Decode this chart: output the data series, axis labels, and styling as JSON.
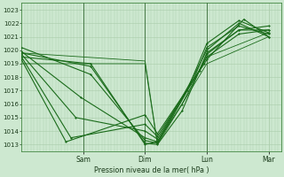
{
  "xlabel": "Pression niveau de la mer( hPa )",
  "ylim": [
    1012.5,
    1023.5
  ],
  "yticks": [
    1013,
    1014,
    1015,
    1016,
    1017,
    1018,
    1019,
    1020,
    1021,
    1022,
    1023
  ],
  "day_labels": [
    "Sam",
    "Dim",
    "Lun",
    "Mar"
  ],
  "day_positions": [
    0.25,
    0.5,
    0.75,
    1.0
  ],
  "xlim": [
    0.0,
    1.05
  ],
  "bg_color": "#cde8d0",
  "grid_color": "#aaccaa",
  "line_color": "#1a6b1a",
  "series": [
    {
      "x": [
        0.0,
        0.28,
        0.5,
        0.55,
        0.65,
        0.75,
        0.88,
        1.0
      ],
      "y": [
        1019.5,
        1019.0,
        1013.0,
        1013.2,
        1016.0,
        1019.5,
        1021.2,
        1021.5
      ]
    },
    {
      "x": [
        0.0,
        0.28,
        0.5,
        0.55,
        0.65,
        0.75,
        0.88,
        1.0
      ],
      "y": [
        1019.8,
        1018.8,
        1013.1,
        1013.0,
        1015.5,
        1019.8,
        1021.5,
        1021.8
      ]
    },
    {
      "x": [
        0.0,
        0.28,
        0.5,
        0.55,
        0.67,
        0.75,
        0.88,
        1.0
      ],
      "y": [
        1020.2,
        1018.2,
        1013.3,
        1013.1,
        1017.0,
        1020.5,
        1022.2,
        1021.3
      ]
    },
    {
      "x": [
        0.0,
        0.24,
        0.5,
        0.55,
        0.68,
        0.75,
        0.88,
        1.0
      ],
      "y": [
        1019.9,
        1016.5,
        1013.5,
        1013.2,
        1017.5,
        1020.0,
        1022.0,
        1021.0
      ]
    },
    {
      "x": [
        0.0,
        0.22,
        0.5,
        0.55,
        0.7,
        0.75,
        0.88,
        1.0
      ],
      "y": [
        1019.7,
        1015.0,
        1014.0,
        1013.4,
        1018.0,
        1020.2,
        1021.8,
        1021.2
      ]
    },
    {
      "x": [
        0.0,
        0.2,
        0.5,
        0.55,
        0.72,
        0.75,
        0.88,
        1.0
      ],
      "y": [
        1019.5,
        1013.5,
        1014.5,
        1013.6,
        1018.5,
        1019.7,
        1021.5,
        1021.5
      ]
    },
    {
      "x": [
        0.0,
        0.18,
        0.5,
        0.55,
        0.74,
        0.75,
        0.9,
        1.0
      ],
      "y": [
        1019.3,
        1013.2,
        1015.2,
        1013.8,
        1019.0,
        1019.3,
        1022.3,
        1021.0
      ]
    },
    {
      "x": [
        0.0,
        0.5,
        0.55,
        0.75,
        1.0
      ],
      "y": [
        1019.0,
        1019.0,
        1013.0,
        1019.0,
        1021.0
      ]
    },
    {
      "x": [
        0.0,
        0.5,
        0.55,
        0.75,
        1.0
      ],
      "y": [
        1019.8,
        1019.2,
        1013.1,
        1019.5,
        1021.3
      ]
    }
  ],
  "marker_series": [
    0,
    1,
    2,
    3,
    4,
    5,
    6
  ],
  "lw_series": [
    0.8,
    0.8,
    0.8,
    0.8,
    0.8,
    0.8,
    0.8,
    0.6,
    0.6
  ]
}
